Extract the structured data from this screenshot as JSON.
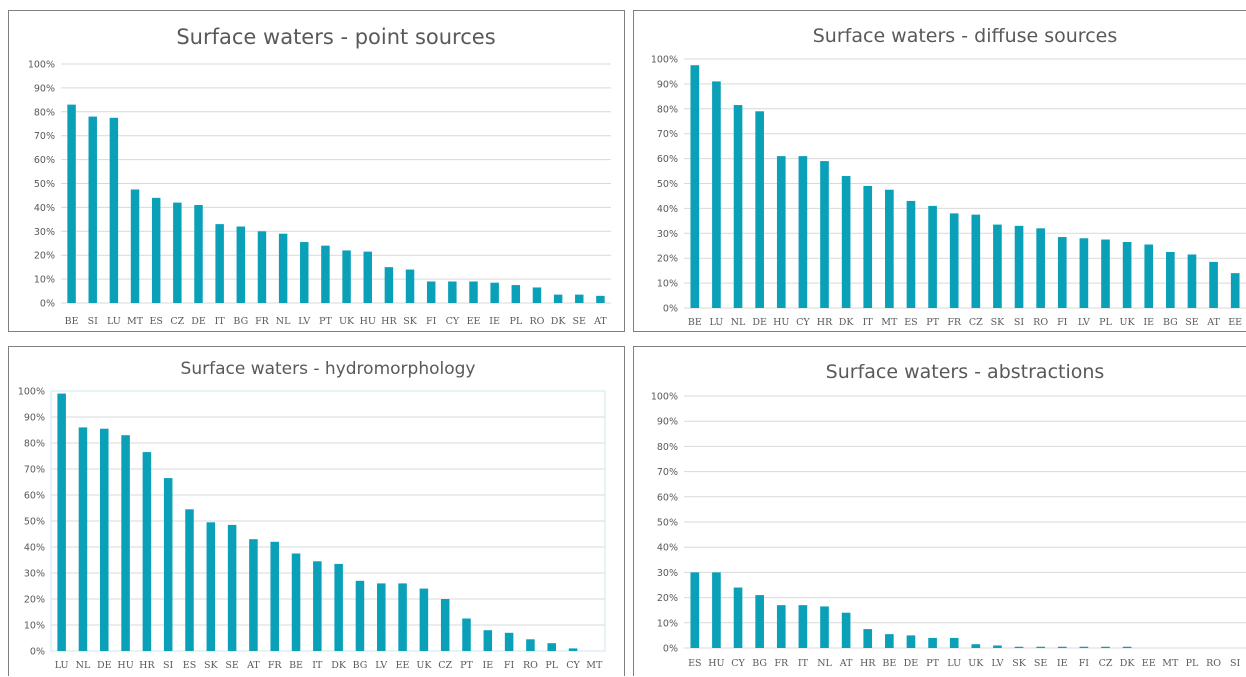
{
  "colors": {
    "bar": "#0aa0b8",
    "grid": "#d9d9d9",
    "text": "#595959",
    "frame": "#7f7f7f",
    "hydro_plot_border": "#cfe8ec"
  },
  "chart_data": [
    {
      "type": "bar",
      "title": "Surface waters - point sources",
      "categories": [
        "BE",
        "SI",
        "LU",
        "MT",
        "ES",
        "CZ",
        "DE",
        "IT",
        "BG",
        "FR",
        "NL",
        "LV",
        "PT",
        "UK",
        "HU",
        "HR",
        "SK",
        "FI",
        "CY",
        "EE",
        "IE",
        "PL",
        "RO",
        "DK",
        "SE",
        "AT"
      ],
      "values": [
        83,
        78,
        77.5,
        47.5,
        44,
        42,
        41,
        33,
        32,
        30,
        29,
        25.5,
        24,
        22,
        21.5,
        15,
        14,
        9,
        9,
        9,
        8.5,
        7.5,
        6.5,
        3.5,
        3.5,
        3
      ],
      "yticks": [
        "0%",
        "10%",
        "20%",
        "30%",
        "40%",
        "50%",
        "60%",
        "70%",
        "80%",
        "90%",
        "100%"
      ],
      "ylim": [
        0,
        100
      ],
      "grid": true,
      "xlabel": "",
      "ylabel": ""
    },
    {
      "type": "bar",
      "title": "Surface waters - diffuse sources",
      "categories": [
        "BE",
        "LU",
        "NL",
        "DE",
        "HU",
        "CY",
        "HR",
        "DK",
        "IT",
        "MT",
        "ES",
        "PT",
        "FR",
        "CZ",
        "SK",
        "SI",
        "RO",
        "FI",
        "LV",
        "PL",
        "UK",
        "IE",
        "BG",
        "SE",
        "AT",
        "EE"
      ],
      "values": [
        97.5,
        91,
        81.5,
        79,
        61,
        61,
        59,
        53,
        49,
        47.5,
        43,
        41,
        38,
        37.5,
        33.5,
        33,
        32,
        28.5,
        28,
        27.5,
        26.5,
        25.5,
        22.5,
        21.5,
        18.5,
        14
      ],
      "yticks": [
        "0%",
        "10%",
        "20%",
        "30%",
        "40%",
        "50%",
        "60%",
        "70%",
        "80%",
        "90%",
        "100%"
      ],
      "ylim": [
        0,
        100
      ],
      "grid": true,
      "xlabel": "",
      "ylabel": ""
    },
    {
      "type": "bar",
      "title": "Surface waters - hydromorphology",
      "categories": [
        "LU",
        "NL",
        "DE",
        "HU",
        "HR",
        "SI",
        "ES",
        "SK",
        "SE",
        "AT",
        "FR",
        "BE",
        "IT",
        "DK",
        "BG",
        "LV",
        "EE",
        "UK",
        "CZ",
        "PT",
        "IE",
        "FI",
        "RO",
        "PL",
        "CY",
        "MT"
      ],
      "values": [
        99,
        86,
        85.5,
        83,
        76.5,
        66.5,
        54.5,
        49.5,
        48.5,
        43,
        42,
        37.5,
        34.5,
        33.5,
        27,
        26,
        26,
        24,
        20,
        12.5,
        8,
        7,
        4.5,
        3,
        1,
        0
      ],
      "yticks": [
        "0%",
        "10%",
        "20%",
        "30%",
        "40%",
        "50%",
        "60%",
        "70%",
        "80%",
        "90%",
        "100%"
      ],
      "ylim": [
        0,
        100
      ],
      "grid": true,
      "xlabel": "",
      "ylabel": ""
    },
    {
      "type": "bar",
      "title": "Surface waters - abstractions",
      "categories": [
        "ES",
        "HU",
        "CY",
        "BG",
        "FR",
        "IT",
        "NL",
        "AT",
        "HR",
        "BE",
        "DE",
        "PT",
        "LU",
        "UK",
        "LV",
        "SK",
        "SE",
        "IE",
        "FI",
        "CZ",
        "DK",
        "EE",
        "MT",
        "PL",
        "RO",
        "SI"
      ],
      "values": [
        30,
        30,
        24,
        21,
        17,
        17,
        16.5,
        14,
        7.5,
        5.5,
        5,
        4,
        4,
        1.5,
        1,
        0.5,
        0.5,
        0.5,
        0.5,
        0.5,
        0.5,
        0,
        0,
        0,
        0,
        0
      ],
      "yticks": [
        "0%",
        "10%",
        "20%",
        "30%",
        "40%",
        "50%",
        "60%",
        "70%",
        "80%",
        "90%",
        "100%"
      ],
      "ylim": [
        0,
        100
      ],
      "grid": true,
      "xlabel": "",
      "ylabel": ""
    }
  ]
}
